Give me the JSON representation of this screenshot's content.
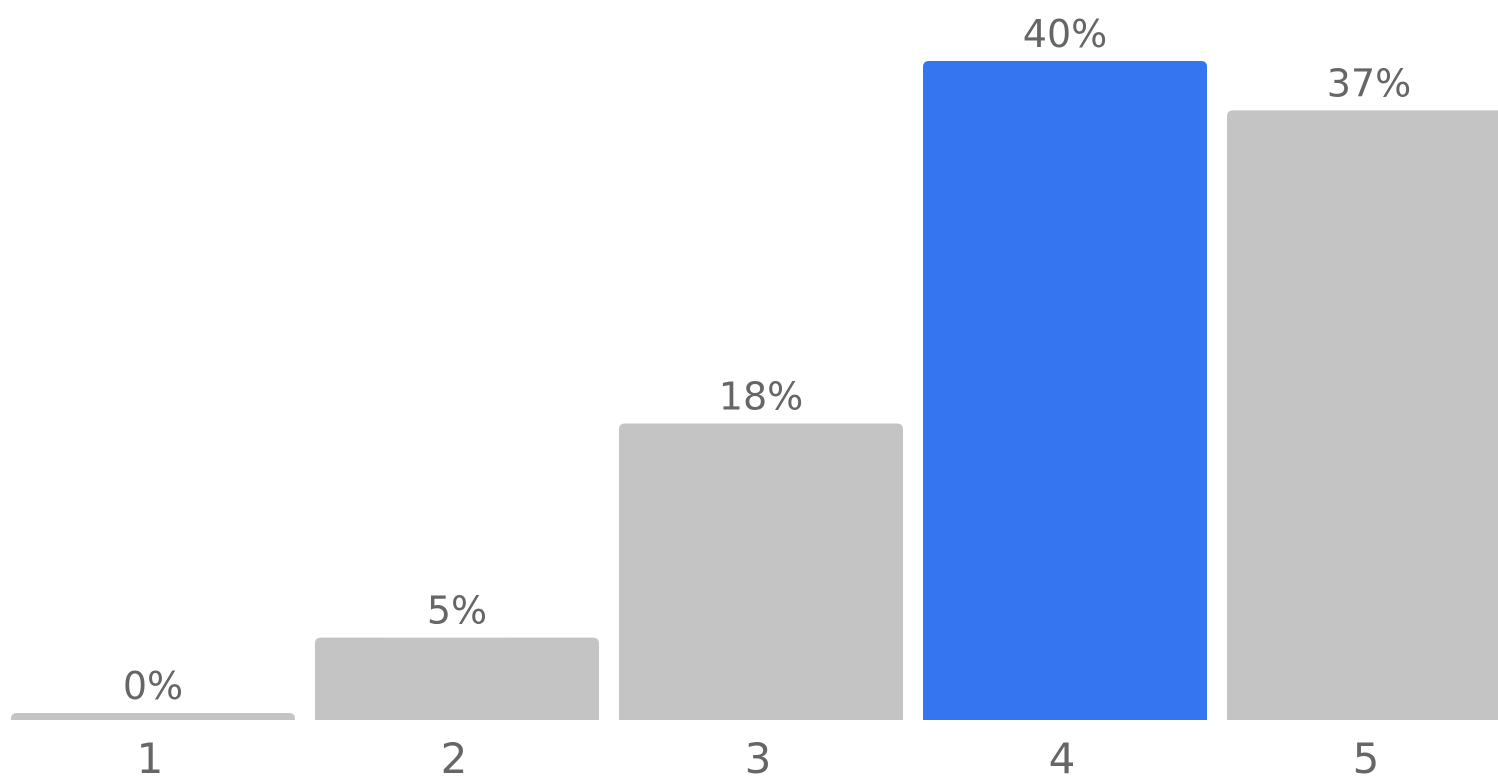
{
  "chart_data": {
    "type": "bar",
    "categories": [
      "1",
      "2",
      "3",
      "4",
      "5"
    ],
    "values": [
      0,
      5,
      18,
      40,
      37
    ],
    "data_labels": [
      "0%",
      "5%",
      "18%",
      "40%",
      "37%"
    ],
    "highlight_index": 3,
    "ylim": [
      0,
      40
    ],
    "grid": false,
    "legend": "none",
    "title": "",
    "xlabel": "",
    "ylabel": ""
  },
  "colors": {
    "bar_default": "#c4c4c4",
    "bar_highlight": "#3576f0",
    "label_text": "#666666"
  }
}
